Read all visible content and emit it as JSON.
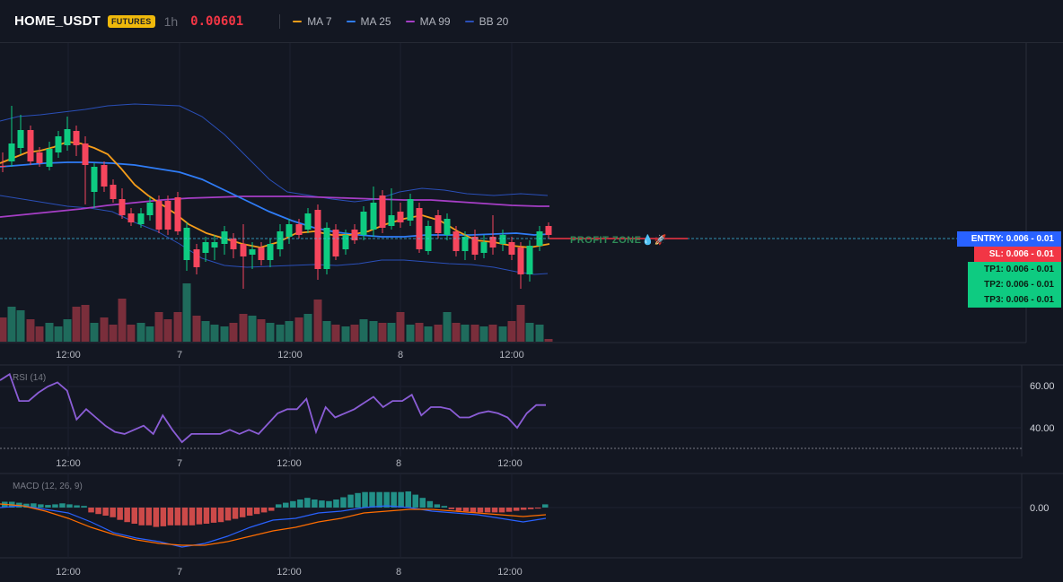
{
  "header": {
    "symbol": "HOME_USDT",
    "badge": "FUTURES",
    "timeframe": "1h",
    "price": "0.00601",
    "indicators": [
      {
        "label": "MA 7",
        "color": "#f59d1a"
      },
      {
        "label": "MA 25",
        "color": "#2f7cf6"
      },
      {
        "label": "MA 99",
        "color": "#a63ec6"
      },
      {
        "label": "BB 20",
        "color": "#2a4fb8"
      }
    ]
  },
  "time_axis": [
    "12:00",
    "7",
    "12:00",
    "8",
    "12:00"
  ],
  "main_chart": {
    "annotation": "PROFIT ZONE💧🚀"
  },
  "trade_levels": {
    "entry": "ENTRY: 0.006 - 0.01",
    "sl": "SL: 0.006 - 0.01",
    "tp1": "TP1: 0.006 - 0.01",
    "tp2": "TP2: 0.006 - 0.01",
    "tp3": "TP3: 0.006 - 0.01"
  },
  "rsi": {
    "label": "RSI (14)",
    "ticks": [
      "60.00",
      "40.00"
    ],
    "values": [
      63,
      66,
      53,
      53,
      57,
      60,
      62,
      58,
      44,
      49,
      45,
      41,
      38,
      37,
      39,
      41,
      37,
      46,
      39,
      33,
      37,
      37,
      37,
      37,
      39,
      37,
      39,
      37,
      42,
      47,
      49,
      49,
      54,
      38,
      50,
      45,
      47,
      49,
      52,
      55,
      50,
      53,
      53,
      56,
      46,
      50,
      50,
      49,
      45,
      45,
      47,
      48,
      47,
      45,
      40,
      47,
      51,
      51
    ],
    "line_color": "#8b5dd6"
  },
  "macd": {
    "label": "MACD (12, 26, 9)",
    "ticks": [
      "0.00"
    ],
    "hist": [
      1.8,
      1.8,
      1.5,
      1.2,
      1.3,
      1.0,
      0.8,
      1.0,
      1.3,
      1.0,
      0.7,
      0.5,
      -1.5,
      -2.0,
      -2.5,
      -3.0,
      -3.8,
      -4.5,
      -5.0,
      -5.5,
      -5.5,
      -6.0,
      -5.8,
      -5.5,
      -5.5,
      -5.5,
      -5.5,
      -5.2,
      -5.0,
      -4.7,
      -4.5,
      -4.0,
      -3.5,
      -3.0,
      -2.5,
      -2.0,
      -1.5,
      -1.0,
      1.0,
      1.5,
      2.0,
      2.5,
      3.0,
      2.5,
      2.2,
      2.0,
      2.5,
      3.2,
      4.0,
      4.5,
      4.8,
      4.8,
      4.8,
      4.8,
      4.8,
      4.8,
      5.0,
      4.0,
      3.0,
      2.0,
      1.0,
      0.5,
      -0.5,
      -1.0,
      -1.2,
      -1.5,
      -1.5,
      -1.5,
      -1.5,
      -1.5,
      -1.3,
      -1.0,
      -0.7,
      -0.5,
      -0.3,
      1.0
    ],
    "macd_line": [
      0,
      1,
      -1,
      -3,
      -8,
      -14,
      -17,
      -19,
      -22,
      -20,
      -16,
      -11,
      -7,
      -6,
      -3,
      -2,
      0,
      1,
      0,
      -2,
      -3,
      -4,
      -6,
      -8,
      -6
    ],
    "signal_line": [
      2,
      1,
      -2,
      -6,
      -11,
      -15,
      -18,
      -20,
      -21,
      -21,
      -19,
      -16,
      -13,
      -11,
      -8,
      -6,
      -3,
      -2,
      -1,
      -1,
      -2,
      -3,
      -4,
      -5,
      -4
    ],
    "macd_color": "#2962ff",
    "signal_color": "#ff6d00",
    "hist_up_color": "#26a69a",
    "hist_down_color": "#ef5350"
  },
  "colors": {
    "background": "#131722",
    "grid": "#1f2330",
    "candle_up": "#0ecb81",
    "candle_down": "#f6465d",
    "volume_up": "#1f6b5c",
    "volume_down": "#7a2e3b",
    "entry": "#2962ff",
    "sl": "#f23645",
    "tp": "#0ecb81"
  }
}
